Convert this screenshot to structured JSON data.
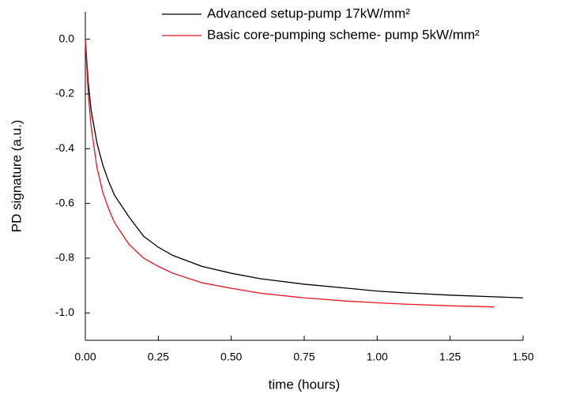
{
  "chart_data": {
    "type": "line",
    "xlabel": "time (hours)",
    "ylabel": "PD signature (a.u.)",
    "x": [
      0,
      0.01,
      0.02,
      0.04,
      0.06,
      0.08,
      0.1,
      0.15,
      0.2,
      0.25,
      0.3,
      0.4,
      0.5,
      0.6,
      0.75,
      0.9,
      1.0,
      1.1,
      1.25,
      1.4,
      1.5
    ],
    "series": [
      {
        "name": "Advanced setup-pump 17kW/mm²",
        "color": "#000000",
        "values": [
          0,
          -0.16,
          -0.26,
          -0.38,
          -0.46,
          -0.52,
          -0.57,
          -0.65,
          -0.72,
          -0.76,
          -0.79,
          -0.83,
          -0.855,
          -0.875,
          -0.895,
          -0.91,
          -0.92,
          -0.927,
          -0.935,
          -0.941,
          -0.945
        ]
      },
      {
        "name": "Basic core-pumping scheme- pump 5kW/mm²",
        "color": "#e8141b",
        "values": [
          0,
          -0.2,
          -0.32,
          -0.47,
          -0.56,
          -0.62,
          -0.67,
          -0.75,
          -0.8,
          -0.83,
          -0.855,
          -0.89,
          -0.91,
          -0.928,
          -0.945,
          -0.957,
          -0.963,
          -0.968,
          -0.974,
          -0.978,
          null
        ]
      }
    ],
    "xlim": [
      0,
      1.5
    ],
    "xticks": [
      {
        "value": 0,
        "label": "0.00"
      },
      0.25,
      {
        "value": 0.5,
        "label": "0.50"
      },
      0.75,
      {
        "value": 1,
        "label": "1.00"
      },
      1.25,
      {
        "value": 1.5,
        "label": "1.50"
      }
    ],
    "ylim": [
      -1.1,
      0.1
    ],
    "yticks": [
      {
        "value": 0,
        "label": "0.0"
      },
      -0.2,
      -0.4,
      -0.6,
      -0.8,
      {
        "value": -1,
        "label": "-1.0"
      }
    ],
    "grid": false,
    "legend": "top-right"
  }
}
